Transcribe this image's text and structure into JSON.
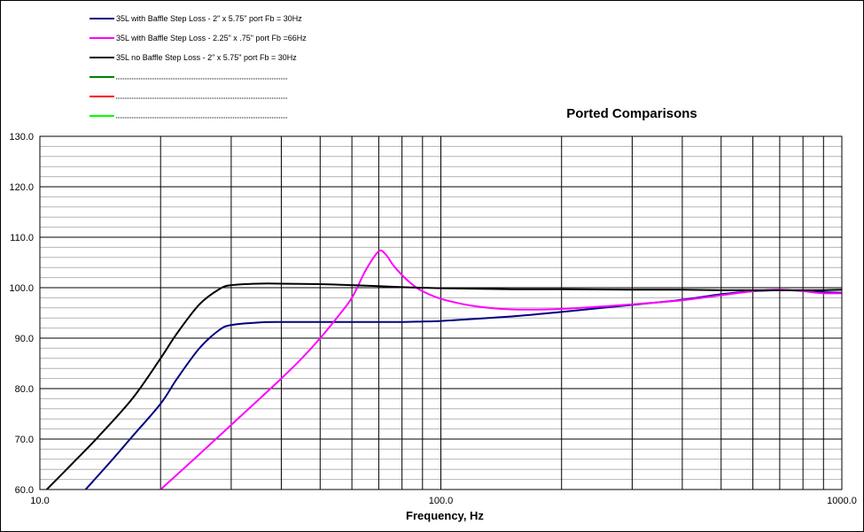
{
  "chart_data": {
    "type": "line",
    "title": "Ported Comparisons",
    "xlabel": "Frequency, Hz",
    "ylabel": "",
    "xscale": "log",
    "xlim": [
      10,
      1000
    ],
    "ylim": [
      60,
      130
    ],
    "grid": true,
    "legend_position": "top-left",
    "x_ticks": [
      10,
      100,
      1000
    ],
    "x_tick_labels": [
      "10.0",
      "100.0",
      "1000.0"
    ],
    "y_ticks": [
      60,
      70,
      80,
      90,
      100,
      110,
      120,
      130
    ],
    "y_tick_labels": [
      "60.0",
      "70.0",
      "80.0",
      "90.0",
      "100.0",
      "110.0",
      "120.0",
      "130.0"
    ],
    "series": [
      {
        "name": "35L with Baffle Step Loss - 2\" x 5.75\" port  Fb = 30Hz",
        "color": "#000080",
        "x": [
          13,
          15,
          17,
          20,
          22,
          25,
          28,
          30,
          35,
          40,
          50,
          60,
          70,
          80,
          90,
          100,
          150,
          200,
          300,
          400,
          500,
          600,
          700,
          800,
          900,
          1000
        ],
        "y": [
          60,
          65.5,
          70.5,
          77,
          82,
          88,
          91.6,
          92.6,
          93.1,
          93.2,
          93.2,
          93.2,
          93.2,
          93.2,
          93.3,
          93.4,
          94.3,
          95.2,
          96.6,
          97.6,
          98.7,
          99.3,
          99.5,
          99.4,
          99.1,
          99.0
        ]
      },
      {
        "name": "35L with Baffle Step Loss - 2.25\" x .75\" port  Fb =66Hz",
        "color": "#ff00ff",
        "x": [
          20,
          25,
          30,
          35,
          40,
          45,
          50,
          55,
          60,
          65,
          70,
          73,
          76,
          80,
          85,
          90,
          100,
          120,
          150,
          200,
          300,
          400,
          500,
          600,
          700,
          800,
          900,
          1000
        ],
        "y": [
          60,
          67,
          72.8,
          77.7,
          82,
          86,
          90,
          94,
          98,
          103.5,
          107.2,
          106.5,
          104.5,
          102.5,
          100.6,
          99.3,
          97.8,
          96.4,
          95.7,
          95.8,
          96.7,
          97.5,
          98.5,
          99.3,
          99.6,
          99.3,
          98.9,
          98.9
        ]
      },
      {
        "name": "35L no Baffle Step Loss - 2\" x 5.75\" port  Fb = 30Hz",
        "color": "#000000",
        "x": [
          10.4,
          12,
          14,
          17,
          20,
          22,
          25,
          28,
          30,
          35,
          40,
          50,
          60,
          70,
          80,
          90,
          100,
          150,
          200,
          300,
          400,
          500,
          600,
          700,
          800,
          900,
          1000
        ],
        "y": [
          60,
          65,
          70.5,
          78,
          86,
          91,
          96.7,
          99.7,
          100.5,
          100.8,
          100.8,
          100.7,
          100.5,
          100.3,
          100.1,
          100.0,
          99.9,
          99.7,
          99.7,
          99.6,
          99.6,
          99.5,
          99.5,
          99.5,
          99.5,
          99.5,
          99.6
        ]
      }
    ],
    "empty_legend_colors": [
      "#008000",
      "#ff0000",
      "#00ff00"
    ]
  }
}
